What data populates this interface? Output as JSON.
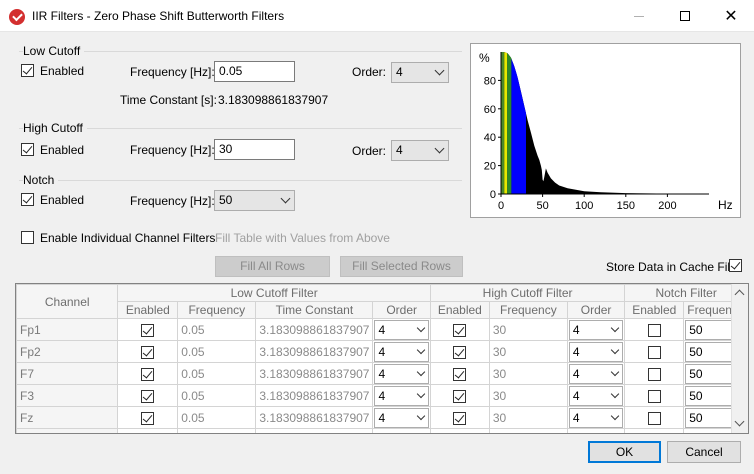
{
  "window": {
    "title": "IIR Filters - Zero Phase Shift Butterworth Filters",
    "minimize_glyph": "—",
    "close_glyph": "✕"
  },
  "low_cutoff": {
    "group_title": "Low Cutoff",
    "enabled_label": "Enabled",
    "enabled": true,
    "frequency_label": "Frequency [Hz]:",
    "frequency_value": "0.05",
    "order_label": "Order:",
    "order_value": "4",
    "time_constant_label": "Time Constant [s]:",
    "time_constant_value": "3.183098861837907"
  },
  "high_cutoff": {
    "group_title": "High Cutoff",
    "enabled_label": "Enabled",
    "enabled": true,
    "frequency_label": "Frequency [Hz]:",
    "frequency_value": "30",
    "order_label": "Order:",
    "order_value": "4"
  },
  "notch": {
    "group_title": "Notch",
    "enabled_label": "Enabled",
    "enabled": true,
    "frequency_label": "Frequency [Hz]:",
    "frequency_value": "50"
  },
  "individual": {
    "enable_label": "Enable Individual Channel Filters",
    "enabled": false,
    "fill_table_label": "Fill Table with Values from Above",
    "fill_all_label": "Fill All Rows",
    "fill_selected_label": "Fill Selected Rows"
  },
  "cache": {
    "label": "Store Data in Cache File",
    "checked": true
  },
  "chart_data": {
    "type": "area",
    "title": "",
    "ylabel": "%",
    "xlabel": "Hz",
    "xlim": [
      0,
      250
    ],
    "ylim": [
      0,
      100
    ],
    "x_ticks": [
      0,
      50,
      100,
      150,
      200
    ],
    "y_ticks": [
      0,
      20,
      40,
      60,
      80
    ],
    "bands": [
      {
        "name": "",
        "from": 0.05,
        "to": 4,
        "color": "#4a8a2a"
      },
      {
        "name": "",
        "from": 4,
        "to": 7.5,
        "color": "#e8e800"
      },
      {
        "name": "",
        "from": 7.5,
        "to": 12.5,
        "color": "#2a8a2a"
      },
      {
        "name": "",
        "from": 12.5,
        "to": 30,
        "color": "#0000ff"
      }
    ],
    "spectrum": {
      "x": [
        0,
        4,
        8,
        12,
        16,
        20,
        24,
        28,
        32,
        36,
        40,
        44,
        46,
        48,
        49,
        50,
        51,
        52,
        54,
        56,
        60,
        65,
        70,
        80,
        90,
        100,
        120,
        150,
        200,
        250
      ],
      "y": [
        100,
        100,
        99,
        96,
        90,
        82,
        72,
        62,
        52,
        43,
        34,
        27,
        24,
        20,
        17,
        10,
        9,
        12,
        18,
        15,
        11,
        8,
        6,
        4,
        3,
        2,
        1.2,
        0.6,
        0.3,
        0.1
      ]
    }
  },
  "table": {
    "group_headers": {
      "channel": "Channel",
      "low": "Low Cutoff Filter",
      "high": "High Cutoff Filter",
      "notch": "Notch Filter"
    },
    "columns": {
      "low_enabled": "Enabled",
      "low_frequency": "Frequency",
      "low_time_constant": "Time Constant",
      "low_order": "Order",
      "high_enabled": "Enabled",
      "high_frequency": "Frequency",
      "high_order": "Order",
      "notch_enabled": "Enabled",
      "notch_frequency": "Frequency"
    },
    "rows": [
      {
        "channel": "Fp1",
        "low_enabled": true,
        "low_freq": "0.05",
        "time_const": "3.183098861837907",
        "low_order": "4",
        "high_enabled": true,
        "high_freq": "30",
        "high_order": "4",
        "notch_enabled": false,
        "notch_freq": "50"
      },
      {
        "channel": "Fp2",
        "low_enabled": true,
        "low_freq": "0.05",
        "time_const": "3.183098861837907",
        "low_order": "4",
        "high_enabled": true,
        "high_freq": "30",
        "high_order": "4",
        "notch_enabled": false,
        "notch_freq": "50"
      },
      {
        "channel": "F7",
        "low_enabled": true,
        "low_freq": "0.05",
        "time_const": "3.183098861837907",
        "low_order": "4",
        "high_enabled": true,
        "high_freq": "30",
        "high_order": "4",
        "notch_enabled": false,
        "notch_freq": "50"
      },
      {
        "channel": "F3",
        "low_enabled": true,
        "low_freq": "0.05",
        "time_const": "3.183098861837907",
        "low_order": "4",
        "high_enabled": true,
        "high_freq": "30",
        "high_order": "4",
        "notch_enabled": false,
        "notch_freq": "50"
      },
      {
        "channel": "Fz",
        "low_enabled": true,
        "low_freq": "0.05",
        "time_const": "3.183098861837907",
        "low_order": "4",
        "high_enabled": true,
        "high_freq": "30",
        "high_order": "4",
        "notch_enabled": false,
        "notch_freq": "50"
      }
    ]
  },
  "footer": {
    "ok_label": "OK",
    "cancel_label": "Cancel"
  },
  "colors": {
    "accent": "#0078d7",
    "app_icon": "#d32f2f"
  }
}
